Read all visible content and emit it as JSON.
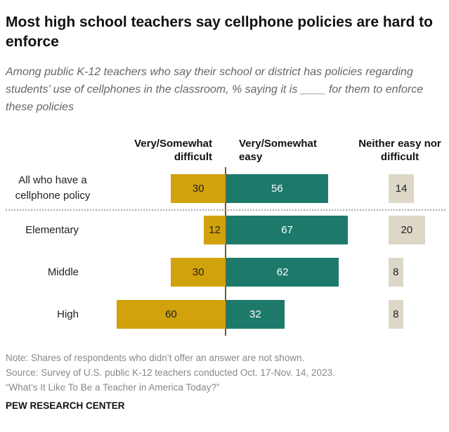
{
  "chart_data": {
    "type": "diverging_bar",
    "title": "Most high school teachers say cellphone policies are hard to enforce",
    "subtitle": "Among public K-12 teachers who say their school or district has policies regarding students’ use of cellphones in the classroom, % saying it is ____ for them to enforce these policies",
    "categories": [
      "All who have a cellphone policy",
      "Elementary",
      "Middle",
      "High"
    ],
    "series": [
      {
        "name": "Very/Somewhat difficult",
        "color": "#d1a20c",
        "values": [
          30,
          12,
          30,
          60
        ]
      },
      {
        "name": "Very/Somewhat easy",
        "color": "#1d7a6b",
        "values": [
          56,
          67,
          62,
          32
        ]
      },
      {
        "name": "Neither easy nor difficult",
        "color": "#ddd7c8",
        "values": [
          14,
          20,
          8,
          8
        ]
      }
    ],
    "notes": [
      "Note: Shares of respondents who didn’t offer an answer are not shown.",
      "Source: Survey of U.S. public K-12 teachers conducted Oct. 17-Nov. 14, 2023.",
      "“What’s It Like To Be a Teacher in America Today?”"
    ],
    "footer": "PEW RESEARCH CENTER"
  }
}
